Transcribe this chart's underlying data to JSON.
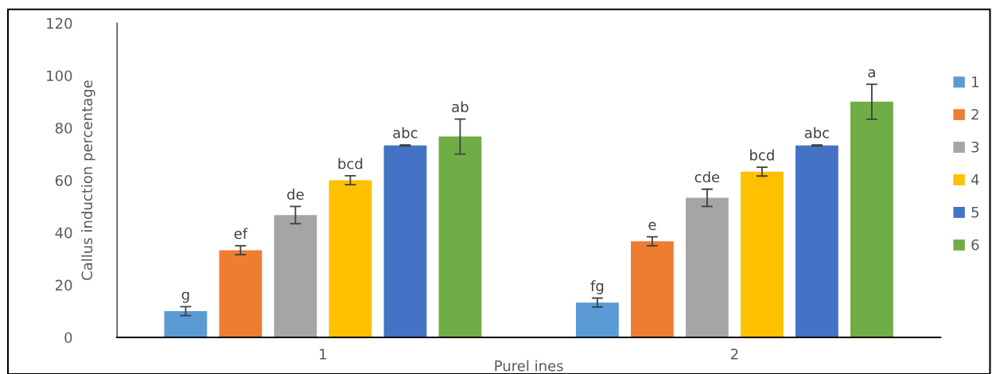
{
  "chart_data": {
    "type": "bar",
    "xlabel": "Purel ines",
    "ylabel": "Callus induction percentage",
    "categories": [
      "1",
      "2"
    ],
    "series": [
      {
        "name": "1",
        "color": "#5b9bd5",
        "values": [
          10,
          13.3
        ],
        "errors": [
          1.7,
          1.7
        ],
        "value_labels": [
          "g",
          "fg"
        ]
      },
      {
        "name": "2",
        "color": "#ed7d31",
        "values": [
          33.3,
          36.7
        ],
        "errors": [
          1.7,
          1.7
        ],
        "value_labels": [
          "ef",
          "e"
        ]
      },
      {
        "name": "3",
        "color": "#a5a5a5",
        "values": [
          46.7,
          53.3
        ],
        "errors": [
          3.3,
          3.3
        ],
        "value_labels": [
          "de",
          "cde"
        ]
      },
      {
        "name": "4",
        "color": "#ffc000",
        "values": [
          60,
          63.3
        ],
        "errors": [
          1.7,
          1.7
        ],
        "value_labels": [
          "bcd",
          "bcd"
        ]
      },
      {
        "name": "5",
        "color": "#4472c4",
        "values": [
          73.3,
          73.3
        ],
        "errors": [
          0.2,
          0.2
        ],
        "value_labels": [
          "abc",
          "abc"
        ]
      },
      {
        "name": "6",
        "color": "#70ad47",
        "values": [
          76.7,
          90
        ],
        "errors": [
          6.7,
          6.7
        ],
        "value_labels": [
          "ab",
          "a"
        ]
      }
    ],
    "ylim": [
      0,
      120
    ],
    "yticks": [
      0,
      20,
      40,
      60,
      80,
      100,
      120
    ],
    "grid": false,
    "legend": "right"
  }
}
